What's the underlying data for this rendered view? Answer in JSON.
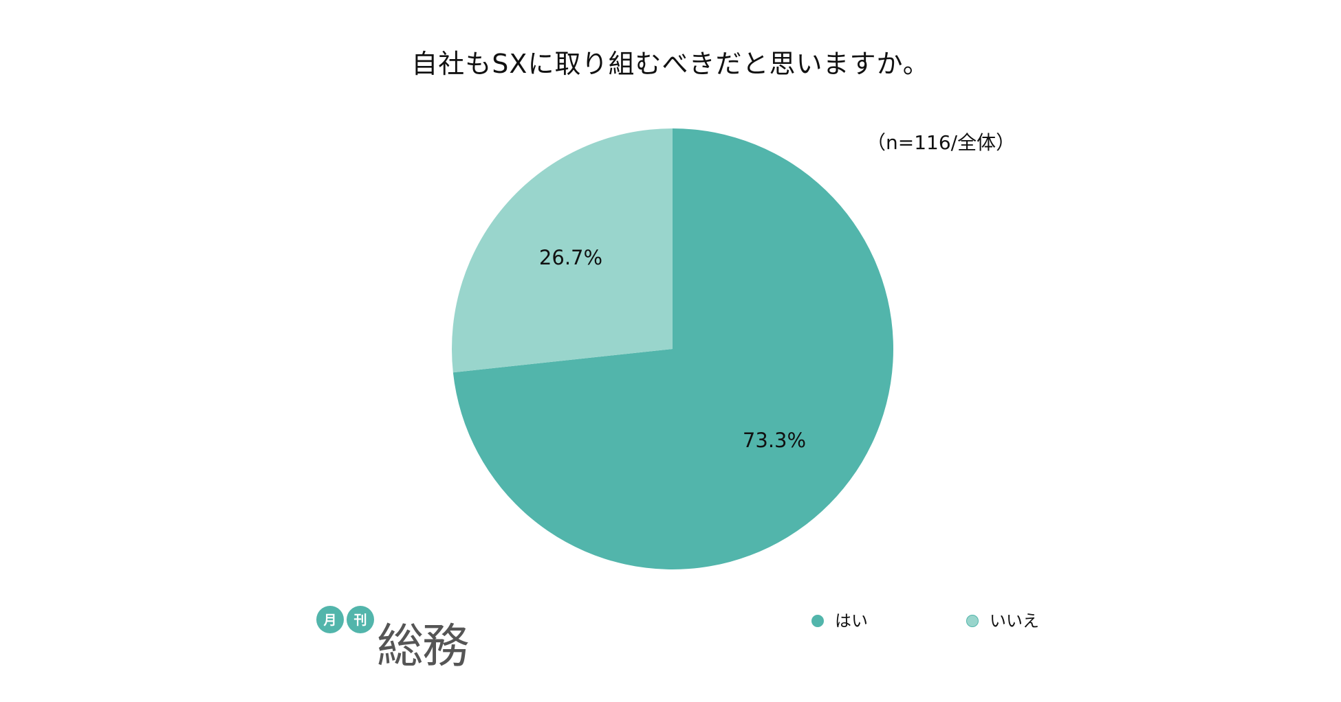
{
  "colors": {
    "background": "#ffffff",
    "yes": "#52b5ab",
    "no": "#99d5cc",
    "text": "#111111",
    "logo_text": "#555555"
  },
  "chart_data": {
    "type": "pie",
    "title": "自社もSXに取り組むべきだと思いますか。",
    "note": "（n=116/全体）",
    "slices": [
      {
        "label": "はい",
        "value": 73.3,
        "value_label": "73.3%",
        "color": "#52b5ab"
      },
      {
        "label": "いいえ",
        "value": 26.7,
        "value_label": "26.7%",
        "color": "#99d5cc"
      }
    ],
    "start": "12 o'clock",
    "direction": "clockwise",
    "legend_position": "bottom-right"
  },
  "logo": {
    "badge_1": "月",
    "badge_2": "刊",
    "wordmark": "総務"
  }
}
